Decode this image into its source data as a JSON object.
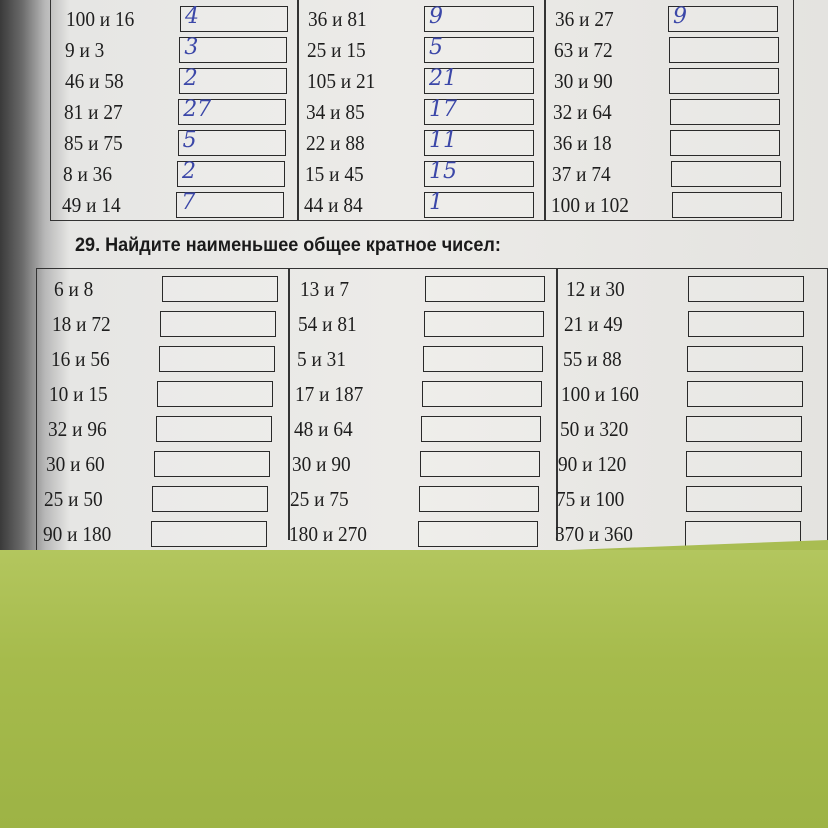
{
  "colors": {
    "ink": "#1e1e1e",
    "handwriting": "#3b47a8",
    "paper": "#ecebe8",
    "background": "#a9bd52"
  },
  "table_prev": {
    "columns": [
      [
        {
          "pair": "100 и 16",
          "answer": "4"
        },
        {
          "pair": "9 и 3",
          "answer": "3"
        },
        {
          "pair": "46 и 58",
          "answer": "2"
        },
        {
          "pair": "81 и 27",
          "answer": "27"
        },
        {
          "pair": "85 и 75",
          "answer": "5"
        },
        {
          "pair": "8 и 36",
          "answer": "2"
        },
        {
          "pair": "49 и 14",
          "answer": "7"
        }
      ],
      [
        {
          "pair": "36 и 81",
          "answer": "9"
        },
        {
          "pair": "25 и 15",
          "answer": "5"
        },
        {
          "pair": "105 и 21",
          "answer": "21"
        },
        {
          "pair": "34 и 85",
          "answer": "17"
        },
        {
          "pair": "22 и 88",
          "answer": "11"
        },
        {
          "pair": "15 и 45",
          "answer": "15"
        },
        {
          "pair": "44 и 84",
          "answer": "1"
        }
      ],
      [
        {
          "pair": "36 и 27",
          "answer": "9"
        },
        {
          "pair": "63 и 72",
          "answer": ""
        },
        {
          "pair": "30 и 90",
          "answer": ""
        },
        {
          "pair": "32 и 64",
          "answer": ""
        },
        {
          "pair": "36 и 18",
          "answer": ""
        },
        {
          "pair": "37 и 74",
          "answer": ""
        },
        {
          "pair": "100 и 102",
          "answer": ""
        }
      ]
    ]
  },
  "exercise29": {
    "title": "29. Найдите наименьшее общее кратное чисел:",
    "columns": [
      [
        {
          "pair": "6 и 8",
          "answer": ""
        },
        {
          "pair": "18 и 72",
          "answer": ""
        },
        {
          "pair": "16 и 56",
          "answer": ""
        },
        {
          "pair": "10 и 15",
          "answer": ""
        },
        {
          "pair": "32 и 96",
          "answer": ""
        },
        {
          "pair": "30 и 60",
          "answer": ""
        },
        {
          "pair": "25 и 50",
          "answer": ""
        },
        {
          "pair": "90 и 180",
          "answer": ""
        }
      ],
      [
        {
          "pair": "13 и 7",
          "answer": ""
        },
        {
          "pair": "54 и 81",
          "answer": ""
        },
        {
          "pair": "5 и 31",
          "answer": ""
        },
        {
          "pair": "17 и 187",
          "answer": ""
        },
        {
          "pair": "48 и 64",
          "answer": ""
        },
        {
          "pair": "30 и 90",
          "answer": ""
        },
        {
          "pair": "25 и 75",
          "answer": ""
        },
        {
          "pair": "180 и 270",
          "answer": ""
        }
      ],
      [
        {
          "pair": "12 и 30",
          "answer": ""
        },
        {
          "pair": "21 и 49",
          "answer": ""
        },
        {
          "pair": "55 и 88",
          "answer": ""
        },
        {
          "pair": "100 и 160",
          "answer": ""
        },
        {
          "pair": "50 и 320",
          "answer": ""
        },
        {
          "pair": "90 и 120",
          "answer": ""
        },
        {
          "pair": "75 и 100",
          "answer": ""
        },
        {
          "pair": "370 и 360",
          "answer": ""
        }
      ]
    ]
  }
}
